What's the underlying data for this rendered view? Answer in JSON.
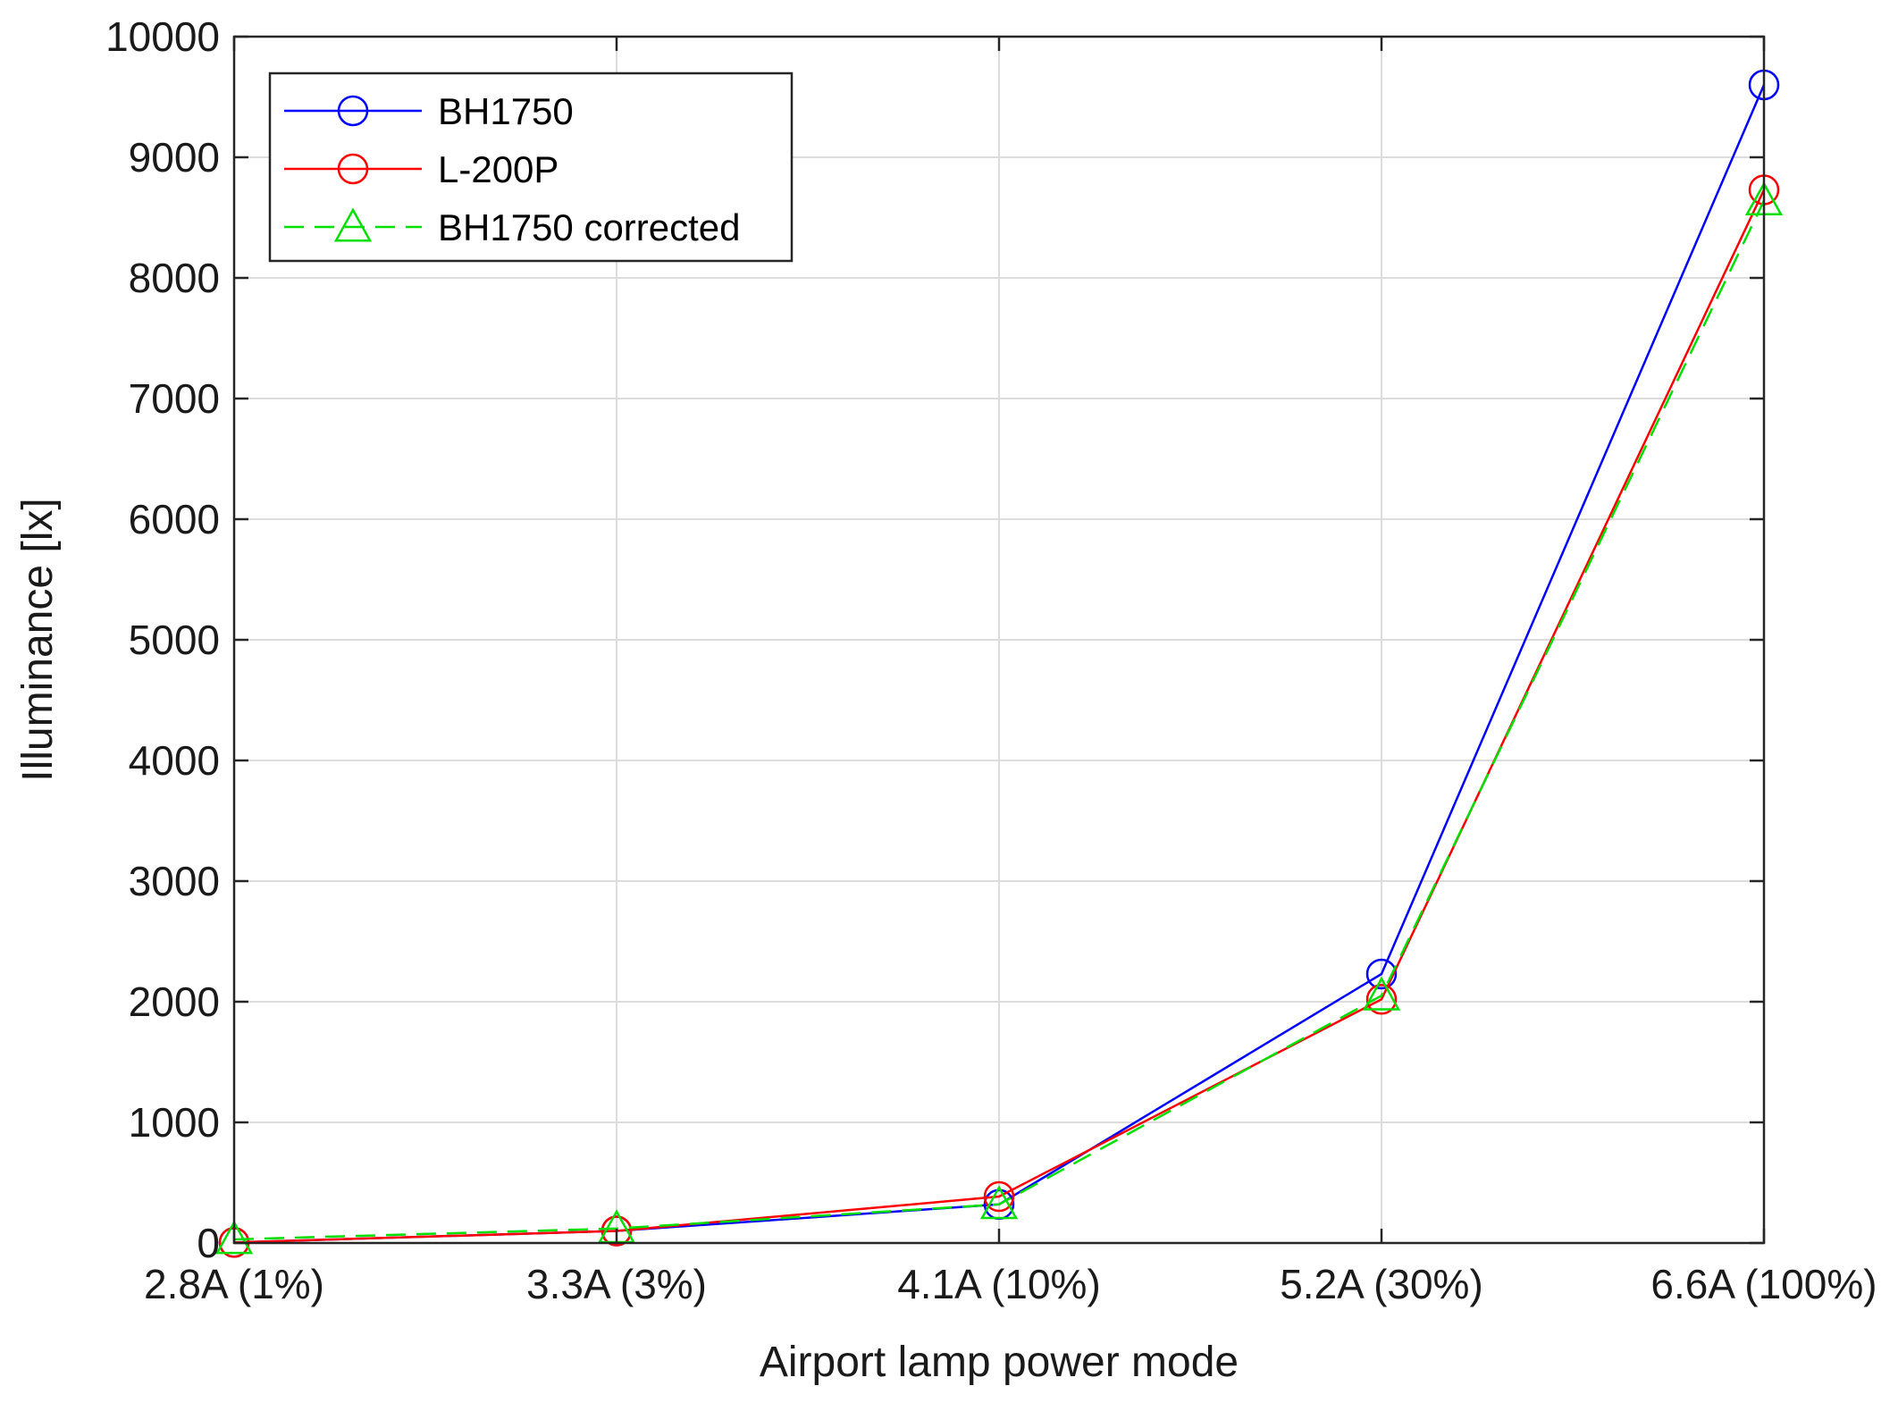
{
  "chart_data": {
    "type": "line",
    "title": "",
    "xlabel": "Airport lamp power mode",
    "ylabel": "Illuminance [lx]",
    "categories": [
      "2.8A (1%)",
      "3.3A (3%)",
      "4.1A (10%)",
      "5.2A (30%)",
      "6.6A (100%)"
    ],
    "ylim": [
      0,
      10000
    ],
    "yticks": [
      0,
      1000,
      2000,
      3000,
      4000,
      5000,
      6000,
      7000,
      8000,
      9000,
      10000
    ],
    "grid": true,
    "legend_position": "top-left",
    "series": [
      {
        "name": "BH1750",
        "values": [
          5,
          100,
          320,
          2230,
          9600
        ],
        "color": "#0000ff",
        "marker": "circle",
        "line_style": "solid"
      },
      {
        "name": "L-200P",
        "values": [
          5,
          100,
          385,
          2020,
          8730
        ],
        "color": "#ff0000",
        "marker": "circle",
        "line_style": "solid"
      },
      {
        "name": "BH1750 corrected",
        "values": [
          30,
          120,
          320,
          2050,
          8640
        ],
        "color": "#00e000",
        "marker": "triangle",
        "line_style": "dashed"
      }
    ]
  }
}
